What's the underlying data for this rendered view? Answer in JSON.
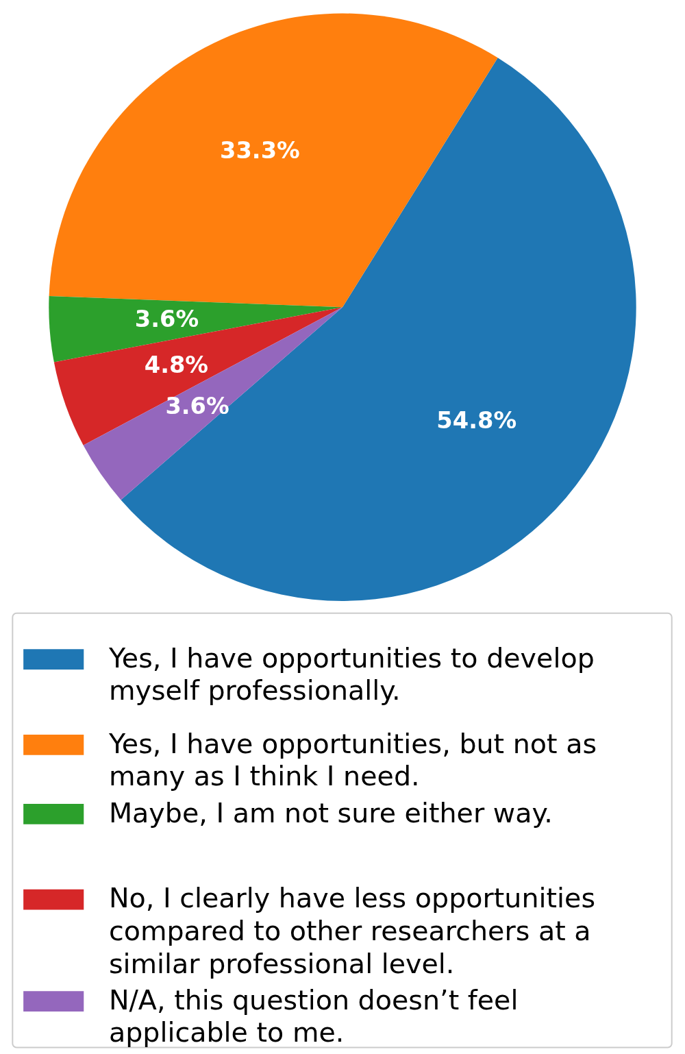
{
  "chart_data": {
    "type": "pie",
    "categories": [
      "Yes, I have opportunities to develop myself professionally.",
      "Yes, I have opportunities, but not as many as I think I need.",
      "Maybe, I am not sure either way.",
      "No, I clearly have less opportunities compared to other researchers at a similar professional level.",
      "N/A, this question doesn’t feel applicable to me."
    ],
    "values": [
      54.8,
      33.3,
      3.6,
      4.8,
      3.6
    ],
    "colors": [
      "#1f77b4",
      "#ff7f0e",
      "#2ca02c",
      "#d62728",
      "#9467bd"
    ],
    "value_labels": [
      "54.8%",
      "33.3%",
      "3.6%",
      "4.8%",
      "3.6%"
    ],
    "legend": "bottom"
  }
}
